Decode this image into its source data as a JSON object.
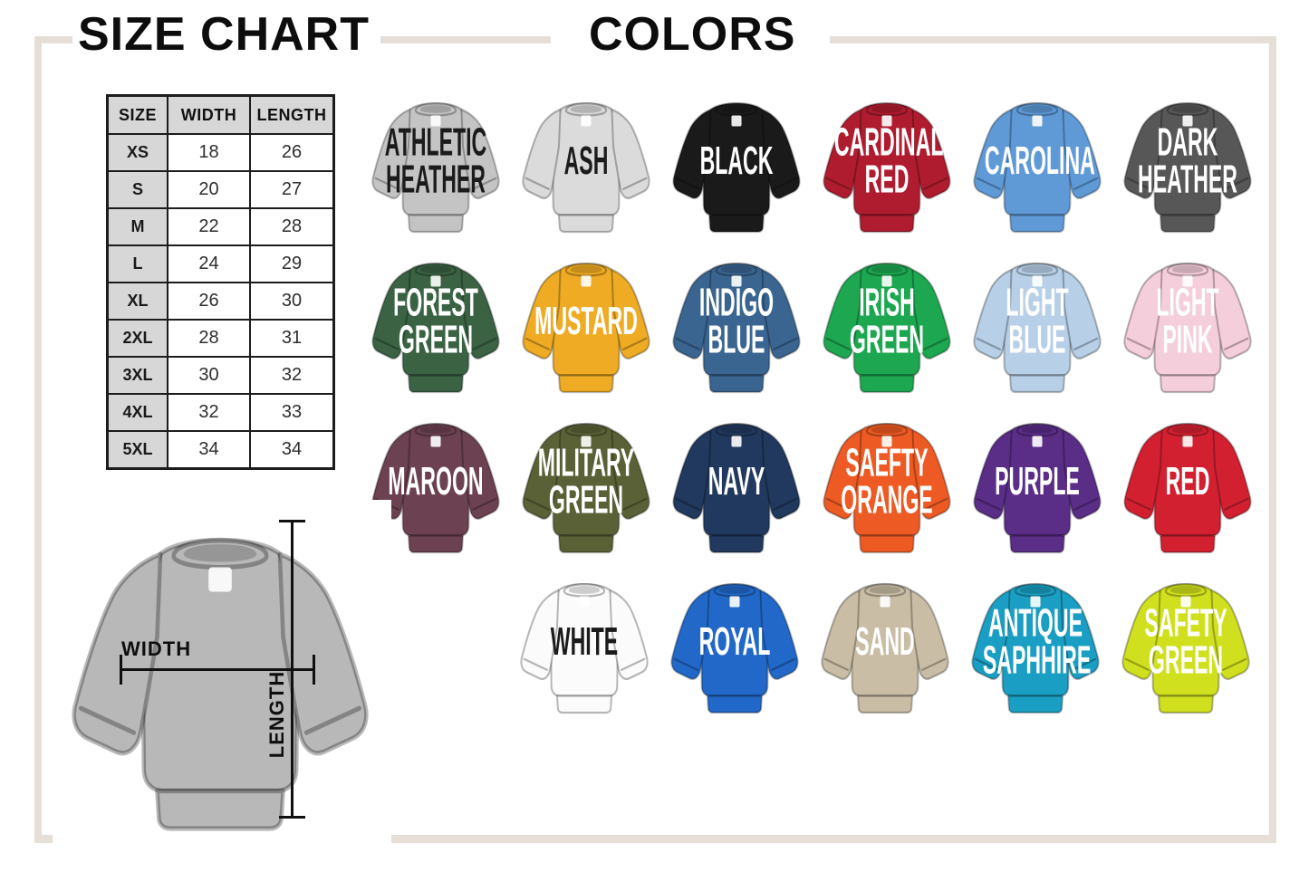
{
  "frame_color": "#e5dfd8",
  "header": {
    "size_chart_title": "SIZE CHART",
    "colors_title": "COLORS"
  },
  "size_chart": {
    "columns": [
      "SIZE",
      "WIDTH",
      "LENGTH"
    ],
    "rows": [
      {
        "size": "XS",
        "width": "18",
        "length": "26"
      },
      {
        "size": "S",
        "width": "20",
        "length": "27"
      },
      {
        "size": "M",
        "width": "22",
        "length": "28"
      },
      {
        "size": "L",
        "width": "24",
        "length": "29"
      },
      {
        "size": "XL",
        "width": "26",
        "length": "30"
      },
      {
        "size": "2XL",
        "width": "28",
        "length": "31"
      },
      {
        "size": "3XL",
        "width": "30",
        "length": "32"
      },
      {
        "size": "4XL",
        "width": "32",
        "length": "33"
      },
      {
        "size": "5XL",
        "width": "34",
        "length": "34"
      }
    ]
  },
  "diagram": {
    "width_label": "WIDTH",
    "length_label": "LENGTH",
    "shirt_color": "#b8b8b8"
  },
  "colors": {
    "rows": [
      [
        {
          "label": "ATHLETIC\nHEATHER",
          "hex": "#c4c4c4",
          "text": "#1b1b1b"
        },
        {
          "label": "ASH",
          "hex": "#dbdbdb",
          "text": "#1b1b1b"
        },
        {
          "label": "BLACK",
          "hex": "#1a1a1a",
          "text": "#ffffff"
        },
        {
          "label": "CARDINAL\nRED",
          "hex": "#b01c2f",
          "text": "#ffffff"
        },
        {
          "label": "CAROLINA",
          "hex": "#5f9ad7",
          "text": "#ffffff"
        },
        {
          "label": "DARK\nHEATHER",
          "hex": "#575757",
          "text": "#ffffff"
        }
      ],
      [
        {
          "label": "FOREST\nGREEN",
          "hex": "#3a6243",
          "text": "#ffffff"
        },
        {
          "label": "MUSTARD",
          "hex": "#eeab23",
          "text": "#ffffff"
        },
        {
          "label": "INDIGO\nBLUE",
          "hex": "#3a6590",
          "text": "#ffffff"
        },
        {
          "label": "IRISH\nGREEN",
          "hex": "#1da750",
          "text": "#ffffff"
        },
        {
          "label": "LIGHT\nBLUE",
          "hex": "#b7cfe7",
          "text": "#ffffff"
        },
        {
          "label": "LIGHT\nPINK",
          "hex": "#f5cedb",
          "text": "#ffffff"
        }
      ],
      [
        {
          "label": "MAROON",
          "hex": "#6c4151",
          "text": "#ffffff"
        },
        {
          "label": "MILITARY\nGREEN",
          "hex": "#5b6136",
          "text": "#ffffff"
        },
        {
          "label": "NAVY",
          "hex": "#21395e",
          "text": "#ffffff"
        },
        {
          "label": "SAEFTY\nORANGE",
          "hex": "#ee5a23",
          "text": "#ffffff"
        },
        {
          "label": "PURPLE",
          "hex": "#5a2d87",
          "text": "#ffffff"
        },
        {
          "label": "RED",
          "hex": "#d32031",
          "text": "#ffffff"
        }
      ],
      [
        {
          "label": "WHITE",
          "hex": "#fbfbfb",
          "text": "#1b1b1b"
        },
        {
          "label": "ROYAL",
          "hex": "#2168c8",
          "text": "#ffffff"
        },
        {
          "label": "SAND",
          "hex": "#c9bda5",
          "text": "#ffffff"
        },
        {
          "label": "ANTIQUE\nSAPHHIRE",
          "hex": "#1b9ec3",
          "text": "#ffffff"
        },
        {
          "label": "SAFETY\nGREEN",
          "hex": "#d0e01e",
          "text": "#ffffff"
        }
      ]
    ]
  }
}
